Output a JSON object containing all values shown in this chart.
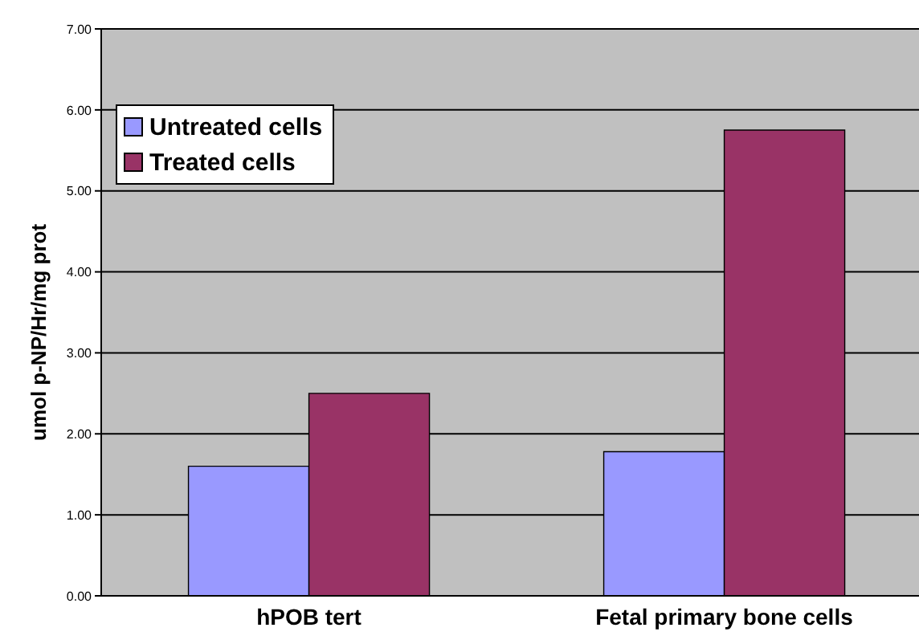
{
  "chart_data": {
    "type": "bar",
    "ylabel": "umol p-NP/Hr/mg prot",
    "categories": [
      "hPOB tert",
      "Fetal primary bone cells"
    ],
    "series": [
      {
        "name": "Untreated cells",
        "color": "#9999ff",
        "values": [
          1.6,
          1.78
        ]
      },
      {
        "name": "Treated cells",
        "color": "#993366",
        "values": [
          2.5,
          5.75
        ]
      }
    ],
    "ylim": [
      0,
      7
    ],
    "yticks": [
      {
        "value": 0,
        "label": "0.00"
      },
      {
        "value": 1,
        "label": "1.00"
      },
      {
        "value": 2,
        "label": "2.00"
      },
      {
        "value": 3,
        "label": "3.00"
      },
      {
        "value": 4,
        "label": "4.00"
      },
      {
        "value": 5,
        "label": "5.00"
      },
      {
        "value": 6,
        "label": "6.00"
      },
      {
        "value": 7,
        "label": "7.00"
      }
    ],
    "grid": "y",
    "legend": "top left"
  }
}
